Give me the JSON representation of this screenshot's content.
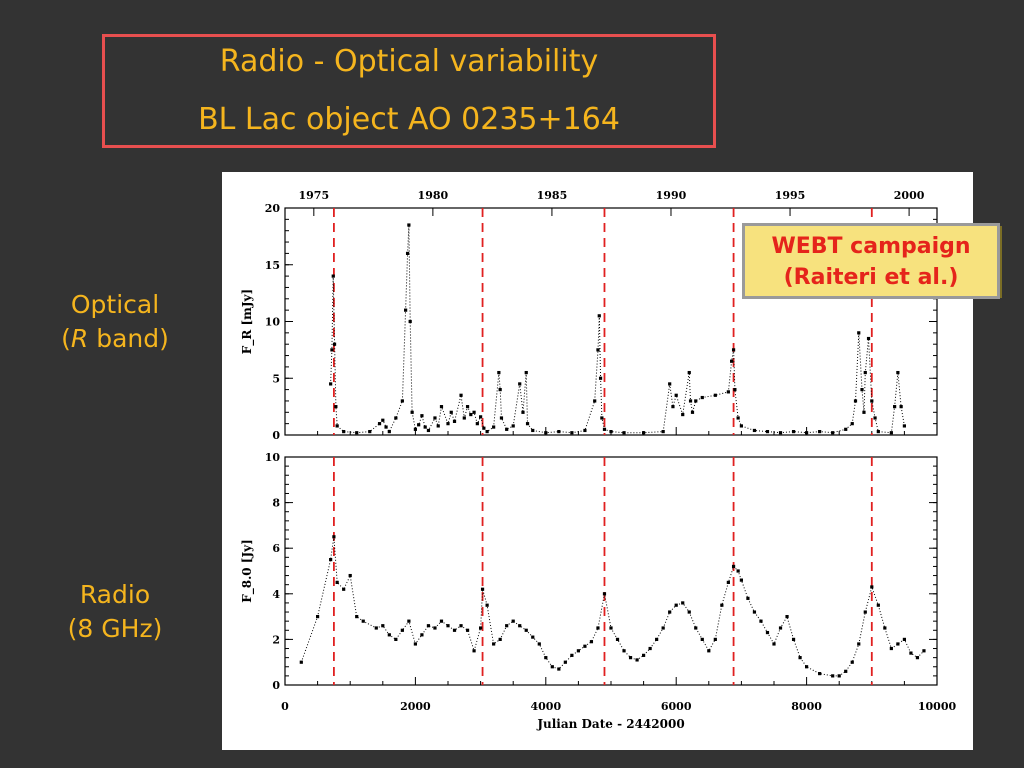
{
  "title": {
    "line1": "Radio - Optical variability",
    "line2": "BL Lac object AO 0235+164"
  },
  "labels": {
    "optical_line1": "Optical",
    "optical_paren_open": "(",
    "optical_r": "R",
    "optical_band": " band)",
    "radio_line1": "Radio",
    "radio_line2": "(8 GHz)"
  },
  "callout": {
    "line1": "WEBT campaign",
    "line2": "(Raiteri et al.)"
  },
  "colors": {
    "background": "#333333",
    "title_text": "#f5b51e",
    "title_border": "#e84f4f",
    "dashed_lines": "#e02020",
    "callout_fill": "#f7e27e",
    "callout_text": "#e5241b"
  },
  "chart_data": [
    {
      "type": "scatter",
      "panel": "top",
      "ylabel": "F_R [mJy]",
      "xlim": [
        0,
        10000
      ],
      "ylim": [
        0,
        20
      ],
      "yticks": [
        0,
        5,
        10,
        15,
        20
      ],
      "top_axis_years": [
        "1975",
        "1980",
        "1985",
        "1990",
        "1995",
        "2000"
      ],
      "top_axis_jd": [
        442,
        2268,
        4094,
        5920,
        7746,
        9572
      ],
      "vertical_dashed_x": [
        750,
        3030,
        4900,
        6880,
        9000
      ],
      "series": [
        {
          "x": [
            700,
            720,
            740,
            760,
            780,
            800,
            900,
            1100,
            1300,
            1450,
            1500,
            1550,
            1600,
            1700,
            1800,
            1850,
            1880,
            1900,
            1920,
            1950,
            2000,
            2050,
            2100,
            2150,
            2200,
            2300,
            2350,
            2400,
            2500,
            2550,
            2600,
            2700,
            2750,
            2800,
            2850,
            2900,
            2950,
            3000,
            3050,
            3100,
            3200,
            3280,
            3300,
            3320,
            3400,
            3500,
            3600,
            3650,
            3700,
            3720,
            3800,
            4000,
            4200,
            4400,
            4600,
            4750,
            4800,
            4820,
            4840,
            4860,
            4900,
            5000,
            5200,
            5500,
            5800,
            5900,
            5950,
            6000,
            6100,
            6200,
            6220,
            6250,
            6300,
            6400,
            6600,
            6800,
            6850,
            6880,
            6900,
            6950,
            7000,
            7200,
            7400,
            7600,
            7800,
            8000,
            8200,
            8400,
            8600,
            8700,
            8750,
            8800,
            8850,
            8880,
            8900,
            8950,
            9000,
            9050,
            9100,
            9300,
            9350,
            9400,
            9450,
            9500
          ],
          "y": [
            4.5,
            7.5,
            14,
            8,
            2.5,
            0.8,
            0.3,
            0.2,
            0.3,
            1.0,
            1.3,
            0.7,
            0.3,
            1.5,
            3.0,
            11,
            16,
            18.5,
            10,
            2.0,
            0.5,
            0.9,
            1.7,
            0.7,
            0.4,
            1.5,
            0.8,
            2.5,
            1.0,
            2.0,
            1.2,
            3.5,
            1.5,
            2.5,
            1.8,
            2.0,
            1.0,
            1.6,
            0.6,
            0.3,
            0.7,
            5.5,
            4.0,
            1.5,
            0.5,
            0.8,
            4.5,
            2.0,
            5.5,
            1.0,
            0.4,
            0.2,
            0.3,
            0.2,
            0.4,
            3.0,
            7.5,
            10.5,
            5.0,
            1.5,
            0.5,
            0.3,
            0.2,
            0.2,
            0.3,
            4.5,
            2.5,
            3.5,
            1.8,
            5.5,
            3.0,
            2.0,
            3.0,
            3.3,
            3.5,
            3.8,
            6.5,
            7.5,
            4.0,
            1.5,
            0.8,
            0.4,
            0.3,
            0.2,
            0.3,
            0.2,
            0.3,
            0.2,
            0.5,
            1.0,
            3.0,
            9.0,
            4.0,
            2.0,
            5.5,
            8.5,
            3.0,
            1.5,
            0.3,
            0.2,
            2.5,
            5.5,
            2.5,
            0.8
          ]
        }
      ]
    },
    {
      "type": "scatter",
      "panel": "bottom",
      "xlabel": "Julian Date - 2442000",
      "ylabel": "F_8.0 [Jy]",
      "xlim": [
        0,
        10000
      ],
      "ylim": [
        0,
        10
      ],
      "xticks": [
        0,
        2000,
        4000,
        6000,
        8000,
        10000
      ],
      "yticks": [
        0,
        2,
        4,
        6,
        8,
        10
      ],
      "vertical_dashed_x": [
        750,
        3030,
        4900,
        6880,
        9000
      ],
      "series": [
        {
          "x": [
            250,
            500,
            700,
            750,
            800,
            900,
            1000,
            1100,
            1200,
            1400,
            1500,
            1600,
            1700,
            1800,
            1900,
            2000,
            2100,
            2200,
            2300,
            2400,
            2500,
            2600,
            2700,
            2800,
            2900,
            3000,
            3030,
            3100,
            3200,
            3300,
            3400,
            3500,
            3600,
            3700,
            3800,
            3900,
            4000,
            4100,
            4200,
            4300,
            4400,
            4500,
            4600,
            4700,
            4800,
            4900,
            5000,
            5100,
            5200,
            5300,
            5400,
            5500,
            5600,
            5700,
            5800,
            5900,
            6000,
            6100,
            6200,
            6300,
            6400,
            6500,
            6600,
            6700,
            6800,
            6880,
            6950,
            7000,
            7100,
            7200,
            7300,
            7400,
            7500,
            7600,
            7700,
            7800,
            7900,
            8000,
            8200,
            8400,
            8500,
            8600,
            8700,
            8800,
            8900,
            9000,
            9100,
            9200,
            9300,
            9400,
            9500,
            9600,
            9700,
            9800
          ],
          "y": [
            1.0,
            3.0,
            5.5,
            6.5,
            4.5,
            4.2,
            4.8,
            3.0,
            2.8,
            2.5,
            2.6,
            2.2,
            2.0,
            2.4,
            2.8,
            1.8,
            2.2,
            2.6,
            2.5,
            2.8,
            2.6,
            2.4,
            2.6,
            2.4,
            1.5,
            2.5,
            4.2,
            3.5,
            1.8,
            2.0,
            2.6,
            2.8,
            2.6,
            2.4,
            2.1,
            1.8,
            1.2,
            0.8,
            0.7,
            1.0,
            1.3,
            1.5,
            1.7,
            1.9,
            2.5,
            4.0,
            2.5,
            2.0,
            1.5,
            1.2,
            1.1,
            1.3,
            1.6,
            2.0,
            2.5,
            3.2,
            3.5,
            3.6,
            3.2,
            2.5,
            2.0,
            1.5,
            2.0,
            3.5,
            4.5,
            5.2,
            5.0,
            4.6,
            3.8,
            3.2,
            2.8,
            2.3,
            1.8,
            2.5,
            3.0,
            2.0,
            1.2,
            0.8,
            0.5,
            0.4,
            0.4,
            0.6,
            1.0,
            1.8,
            3.2,
            4.3,
            3.5,
            2.5,
            1.6,
            1.8,
            2.0,
            1.4,
            1.2,
            1.5
          ]
        }
      ]
    }
  ]
}
